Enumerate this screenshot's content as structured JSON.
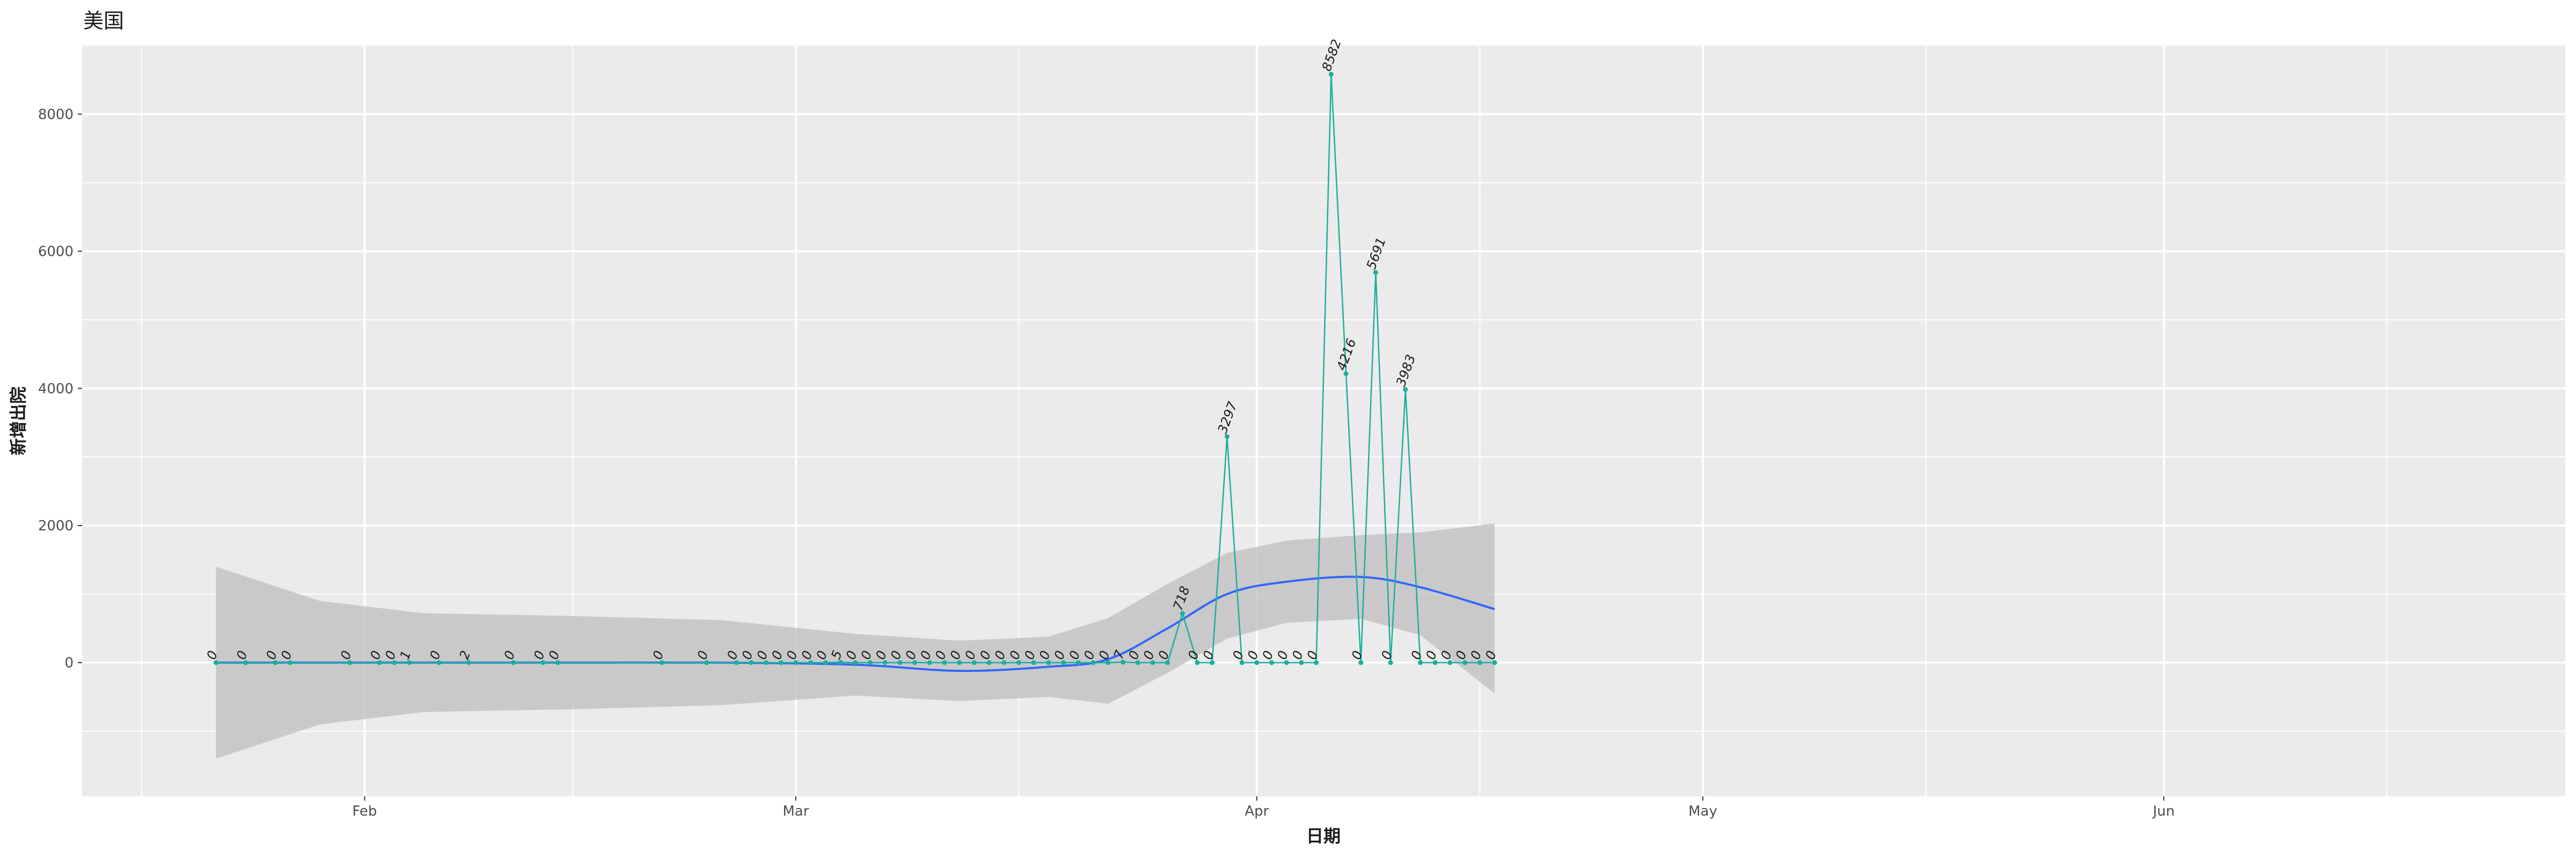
{
  "chart_data": {
    "type": "line",
    "title": "美国",
    "xlabel": "日期",
    "ylabel": "新增出院",
    "x_ticks": [
      "Feb",
      "Mar",
      "Apr",
      "May",
      "Jun"
    ],
    "y_ticks": [
      0,
      2000,
      4000,
      6000,
      8000
    ],
    "ylim": [
      -1950,
      9000
    ],
    "xlim": [
      "2020-01-13",
      "2020-06-28"
    ],
    "grid": true,
    "legend": "none",
    "colors": {
      "panel": "#EBEBEB",
      "grid": "#FFFFFF",
      "series_line": "#1BAF9C",
      "smooth_line": "#3366FF",
      "ribbon": "#BDBDBD"
    },
    "series": [
      {
        "points": [
          {
            "x": "2020-01-22",
            "y": 0
          },
          {
            "x": "2020-01-24",
            "y": 0
          },
          {
            "x": "2020-01-26",
            "y": 0
          },
          {
            "x": "2020-01-27",
            "y": 0
          },
          {
            "x": "2020-01-31",
            "y": 0
          },
          {
            "x": "2020-02-02",
            "y": 0
          },
          {
            "x": "2020-02-03",
            "y": 0
          },
          {
            "x": "2020-02-04",
            "y": 1
          },
          {
            "x": "2020-02-06",
            "y": 0
          },
          {
            "x": "2020-02-08",
            "y": 2
          },
          {
            "x": "2020-02-11",
            "y": 0
          },
          {
            "x": "2020-02-13",
            "y": 0
          },
          {
            "x": "2020-02-14",
            "y": 0
          },
          {
            "x": "2020-02-21",
            "y": 0
          },
          {
            "x": "2020-02-24",
            "y": 0
          },
          {
            "x": "2020-02-26",
            "y": 0
          },
          {
            "x": "2020-02-27",
            "y": 0
          },
          {
            "x": "2020-02-28",
            "y": 0
          },
          {
            "x": "2020-02-29",
            "y": 0
          },
          {
            "x": "2020-03-01",
            "y": 0
          },
          {
            "x": "2020-03-02",
            "y": 0
          },
          {
            "x": "2020-03-03",
            "y": 0
          },
          {
            "x": "2020-03-04",
            "y": 5
          },
          {
            "x": "2020-03-05",
            "y": 0
          },
          {
            "x": "2020-03-06",
            "y": 0
          },
          {
            "x": "2020-03-07",
            "y": 0
          },
          {
            "x": "2020-03-08",
            "y": 0
          },
          {
            "x": "2020-03-09",
            "y": 0
          },
          {
            "x": "2020-03-10",
            "y": 0
          },
          {
            "x": "2020-03-11",
            "y": 0
          },
          {
            "x": "2020-03-12",
            "y": 0
          },
          {
            "x": "2020-03-13",
            "y": 0
          },
          {
            "x": "2020-03-14",
            "y": 0
          },
          {
            "x": "2020-03-15",
            "y": 0
          },
          {
            "x": "2020-03-16",
            "y": 0
          },
          {
            "x": "2020-03-17",
            "y": 0
          },
          {
            "x": "2020-03-18",
            "y": 0
          },
          {
            "x": "2020-03-19",
            "y": 0
          },
          {
            "x": "2020-03-20",
            "y": 0
          },
          {
            "x": "2020-03-21",
            "y": 0
          },
          {
            "x": "2020-03-22",
            "y": 0
          },
          {
            "x": "2020-03-23",
            "y": 7
          },
          {
            "x": "2020-03-24",
            "y": 0
          },
          {
            "x": "2020-03-25",
            "y": 0
          },
          {
            "x": "2020-03-26",
            "y": 0
          },
          {
            "x": "2020-03-27",
            "y": 718
          },
          {
            "x": "2020-03-28",
            "y": 0
          },
          {
            "x": "2020-03-29",
            "y": 0
          },
          {
            "x": "2020-03-30",
            "y": 3297
          },
          {
            "x": "2020-03-31",
            "y": 0
          },
          {
            "x": "2020-04-01",
            "y": 0
          },
          {
            "x": "2020-04-02",
            "y": 0
          },
          {
            "x": "2020-04-03",
            "y": 0
          },
          {
            "x": "2020-04-04",
            "y": 0
          },
          {
            "x": "2020-04-05",
            "y": 0
          },
          {
            "x": "2020-04-06",
            "y": 8582
          },
          {
            "x": "2020-04-07",
            "y": 4216
          },
          {
            "x": "2020-04-08",
            "y": 0
          },
          {
            "x": "2020-04-09",
            "y": 5691
          },
          {
            "x": "2020-04-10",
            "y": 0
          },
          {
            "x": "2020-04-11",
            "y": 3983
          },
          {
            "x": "2020-04-12",
            "y": 0
          },
          {
            "x": "2020-04-13",
            "y": 0
          },
          {
            "x": "2020-04-14",
            "y": 0
          },
          {
            "x": "2020-04-15",
            "y": 0
          },
          {
            "x": "2020-04-16",
            "y": 0
          },
          {
            "x": "2020-04-17",
            "y": 0
          }
        ]
      }
    ],
    "smooth": [
      {
        "x": "2020-01-22",
        "y": 0,
        "lo": -1400,
        "hi": 1400
      },
      {
        "x": "2020-01-29",
        "y": 0,
        "lo": -900,
        "hi": 900
      },
      {
        "x": "2020-02-05",
        "y": 0,
        "lo": -720,
        "hi": 720
      },
      {
        "x": "2020-02-15",
        "y": 0,
        "lo": -680,
        "hi": 680
      },
      {
        "x": "2020-02-25",
        "y": 0,
        "lo": -620,
        "hi": 620
      },
      {
        "x": "2020-03-05",
        "y": -30,
        "lo": -480,
        "hi": 420
      },
      {
        "x": "2020-03-12",
        "y": -120,
        "lo": -560,
        "hi": 320
      },
      {
        "x": "2020-03-18",
        "y": -60,
        "lo": -500,
        "hi": 380
      },
      {
        "x": "2020-03-22",
        "y": 50,
        "lo": -600,
        "hi": 650
      },
      {
        "x": "2020-03-26",
        "y": 500,
        "lo": -150,
        "hi": 1150
      },
      {
        "x": "2020-03-30",
        "y": 1000,
        "lo": 350,
        "hi": 1600
      },
      {
        "x": "2020-04-03",
        "y": 1180,
        "lo": 580,
        "hi": 1780
      },
      {
        "x": "2020-04-08",
        "y": 1250,
        "lo": 640,
        "hi": 1860
      },
      {
        "x": "2020-04-12",
        "y": 1100,
        "lo": 400,
        "hi": 1900
      },
      {
        "x": "2020-04-17",
        "y": 780,
        "lo": -450,
        "hi": 2030
      }
    ]
  }
}
